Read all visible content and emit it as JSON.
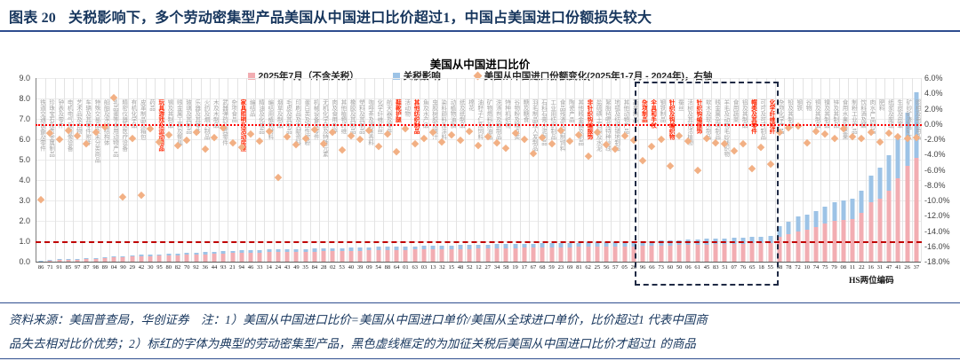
{
  "figure": {
    "header": "图表 20",
    "header_title": "关税影响下，多个劳动密集型产品美国从中国进口比价超过1，中国占美国进口份额损失较大"
  },
  "note": {
    "line1": "资料来源：美国普查局，华创证券　注：1）美国从中国进口比价=美国从中国进口单价/美国从全球进口单价，比价超过1 代表中国商",
    "line2": "品失去相对比价优势；2）标红的字体为典型的劳动密集型产品，黑色虚线框定的为加征关税后美国从中国进口比价才超过1 的商品"
  },
  "chart_data": {
    "type": "bar",
    "stacked": true,
    "title": "美国从中国进口比价",
    "xlabel": "HS两位编码",
    "legend": [
      {
        "label": "2025年7月（不含关税）",
        "marker": "square",
        "color": "#f2adb2"
      },
      {
        "label": "关税影响",
        "marker": "square",
        "color": "#9dc3e6"
      },
      {
        "label": "美国从中国进口份额变化(2025年1-7月 - 2024年)，右轴",
        "marker": "diamond",
        "color": "#f2b084"
      }
    ],
    "left_axis": {
      "min": 0,
      "max": 9,
      "ticks": [
        "9.0",
        "8.0",
        "7.0",
        "6.0",
        "5.0",
        "4.0",
        "3.0",
        "2.0",
        "1.0",
        "0.0"
      ]
    },
    "right_axis": {
      "min": -18,
      "max": 6,
      "ticks": [
        "6.0%",
        "4.0%",
        "2.0%",
        "0.0%",
        "-2.0%",
        "-4.0%",
        "-6.0%",
        "-8.0%",
        "-10.0%",
        "-12.0%",
        "-14.0%",
        "-16.0%",
        "-18.0%"
      ]
    },
    "reference_lines": [
      {
        "axis": "left",
        "value": 1.0,
        "style": "dashed",
        "color": "#c00000"
      },
      {
        "axis": "right",
        "value": 0.0,
        "style": "dotted",
        "color": "#ff0000"
      }
    ],
    "highlight_box": {
      "from_code": "96",
      "to_code": "55",
      "meaning": "加征关税后美国从中国进口比价才超过1的商品"
    },
    "colors": {
      "base": "#f2adb2",
      "tariff": "#9dc3e6",
      "share": "#f2b084",
      "label_gray": "#a3a3a3",
      "label_red": "#ff2400",
      "grid": "#e3e3e3"
    },
    "series": [
      {
        "name": "2025年7月（不含关税）",
        "key": "base",
        "axis": "left",
        "type": "bar"
      },
      {
        "name": "关税影响",
        "key": "tariff",
        "axis": "left",
        "type": "bar"
      },
      {
        "name": "美国从中国进口份额变化(2025年1-7月 - 2024年)，右轴",
        "key": "share",
        "axis": "right",
        "type": "scatter"
      }
    ],
    "categories": [
      {
        "code": "86",
        "name": "铁道交通设备及零件",
        "red": false,
        "base": 0.05,
        "tariff": 0.01,
        "share": -9.8
      },
      {
        "code": "71",
        "name": "珍珠宝石及贵金属制品",
        "red": false,
        "base": 0.07,
        "tariff": 0.02,
        "share": -1.2
      },
      {
        "code": "91",
        "name": "钟表及零件",
        "red": false,
        "base": 0.09,
        "tariff": 0.02,
        "share": -2.0
      },
      {
        "code": "85",
        "name": "电机电气及音像设备",
        "red": false,
        "base": 0.1,
        "tariff": 0.03,
        "share": -0.8
      },
      {
        "code": "97",
        "name": "艺术品及古物",
        "red": false,
        "base": 0.12,
        "tariff": 0.03,
        "share": -1.5
      },
      {
        "code": "87",
        "name": "车辆及其零件附件",
        "red": false,
        "base": 0.13,
        "tariff": 0.04,
        "share": -2.6
      },
      {
        "code": "98",
        "name": "特殊交易品及未分类商品",
        "red": false,
        "base": 0.15,
        "tariff": 0.04,
        "share": -1.0
      },
      {
        "code": "89",
        "name": "船舶及浮动结构体",
        "red": false,
        "base": 0.17,
        "tariff": 0.05,
        "share": -0.4
      },
      {
        "code": "04",
        "name": "乳品蛋等食用动物产品",
        "red": false,
        "base": 0.2,
        "tariff": 0.05,
        "share": 3.5
      },
      {
        "code": "90",
        "name": "精密仪器及医疗设备",
        "red": false,
        "base": 0.22,
        "tariff": 0.06,
        "share": -9.5
      },
      {
        "code": "29",
        "name": "有机化学品",
        "red": false,
        "base": 0.24,
        "tariff": 0.07,
        "share": -1.8
      },
      {
        "code": "42",
        "name": "皮革制品及箱包",
        "red": false,
        "base": 0.26,
        "tariff": 0.07,
        "share": -9.3
      },
      {
        "code": "30",
        "name": "药品",
        "red": false,
        "base": 0.28,
        "tariff": 0.07,
        "share": -0.6
      },
      {
        "code": "95",
        "name": "玩具游戏及运动用品",
        "red": true,
        "base": 0.29,
        "tariff": 0.08,
        "share": -2.3
      },
      {
        "code": "80",
        "name": "锡及其制品",
        "red": false,
        "base": 0.31,
        "tariff": 0.08,
        "share": -1.4
      },
      {
        "code": "82",
        "name": "贱金属工具及餐具",
        "red": false,
        "base": 0.32,
        "tariff": 0.09,
        "share": -2.8
      },
      {
        "code": "70",
        "name": "玻璃及其制品",
        "red": false,
        "base": 0.34,
        "tariff": 0.09,
        "share": -2.1
      },
      {
        "code": "92",
        "name": "乐器及其零件",
        "red": false,
        "base": 0.35,
        "tariff": 0.1,
        "share": -1.1
      },
      {
        "code": "36",
        "name": "火药及烟火制品",
        "red": false,
        "base": 0.37,
        "tariff": 0.1,
        "share": -3.2
      },
      {
        "code": "44",
        "name": "木及木制品",
        "red": false,
        "base": 0.38,
        "tariff": 0.11,
        "share": -1.7
      },
      {
        "code": "93",
        "name": "武器弹药及其零件",
        "red": false,
        "base": 0.4,
        "tariff": 0.11,
        "share": -0.5
      },
      {
        "code": "21",
        "name": "杂项食品",
        "red": false,
        "base": 0.42,
        "tariff": 0.11,
        "share": -2.4
      },
      {
        "code": "94",
        "name": "家具照明及活动房屋",
        "red": true,
        "base": 0.43,
        "tariff": 0.12,
        "share": -3.0
      },
      {
        "code": "46",
        "name": "编结品",
        "red": false,
        "base": 0.44,
        "tariff": 0.12,
        "share": -1.3
      },
      {
        "code": "33",
        "name": "精油及化妆品",
        "red": false,
        "base": 0.45,
        "tariff": 0.13,
        "share": -2.2
      },
      {
        "code": "14",
        "name": "编结用植物材料",
        "red": false,
        "base": 0.46,
        "tariff": 0.13,
        "share": -0.9
      },
      {
        "code": "24",
        "name": "烟草及制品",
        "red": false,
        "base": 0.47,
        "tariff": 0.13,
        "share": -6.9
      },
      {
        "code": "43",
        "name": "毛皮及其制品",
        "red": false,
        "base": 0.48,
        "tariff": 0.13,
        "share": -1.6
      },
      {
        "code": "49",
        "name": "印刷品及文献资料",
        "red": false,
        "base": 0.48,
        "tariff": 0.14,
        "share": -2.7
      },
      {
        "code": "35",
        "name": "蛋白类及改性淀粉",
        "red": false,
        "base": 0.49,
        "tariff": 0.14,
        "share": -1.9
      },
      {
        "code": "84",
        "name": "机械设备及零件",
        "red": false,
        "base": 0.5,
        "tariff": 0.14,
        "share": -0.7
      },
      {
        "code": "28",
        "name": "无机化学品及特殊元素",
        "red": false,
        "base": 0.51,
        "tariff": 0.14,
        "share": -2.5
      },
      {
        "code": "02",
        "name": "肉及食用杂碎",
        "red": false,
        "base": 0.51,
        "tariff": 0.15,
        "share": -1.1
      },
      {
        "code": "53",
        "name": "其他植物纤维",
        "red": false,
        "base": 0.52,
        "tariff": 0.15,
        "share": -3.4
      },
      {
        "code": "40",
        "name": "橡胶及其制品",
        "red": false,
        "base": 0.53,
        "tariff": 0.15,
        "share": -1.5
      },
      {
        "code": "39",
        "name": "塑料及其制品",
        "red": false,
        "base": 0.54,
        "tariff": 0.16,
        "share": -2.0
      },
      {
        "code": "09",
        "name": "咖啡茶及调味香料",
        "red": false,
        "base": 0.55,
        "tariff": 0.16,
        "share": -0.8
      },
      {
        "code": "54",
        "name": "化学纤维长丝",
        "red": false,
        "base": 0.56,
        "tariff": 0.16,
        "share": -2.9
      },
      {
        "code": "88",
        "name": "航天器及零件",
        "red": false,
        "base": 0.57,
        "tariff": 0.16,
        "share": -1.3
      },
      {
        "code": "64",
        "name": "鞋靴护腿",
        "red": true,
        "base": 0.57,
        "tariff": 0.17,
        "share": -3.6
      },
      {
        "code": "01",
        "name": "活动物",
        "red": false,
        "base": 0.58,
        "tariff": 0.17,
        "share": -0.6
      },
      {
        "code": "63",
        "name": "其他纺织制品",
        "red": true,
        "base": 0.59,
        "tariff": 0.17,
        "share": -2.6
      },
      {
        "code": "03",
        "name": "鱼及水产品",
        "red": false,
        "base": 0.6,
        "tariff": 0.17,
        "share": -1.8
      },
      {
        "code": "13",
        "name": "虫胶树胶及液汁",
        "red": false,
        "base": 0.6,
        "tariff": 0.18,
        "share": -1.0
      },
      {
        "code": "32",
        "name": "染料颜料及涂料",
        "red": false,
        "base": 0.61,
        "tariff": 0.18,
        "share": -2.3
      },
      {
        "code": "15",
        "name": "动植物油脂",
        "red": false,
        "base": 0.62,
        "tariff": 0.18,
        "share": -1.4
      },
      {
        "code": "48",
        "name": "纸及纸制品",
        "red": false,
        "base": 0.63,
        "tariff": 0.18,
        "share": -2.1
      },
      {
        "code": "52",
        "name": "棉花",
        "red": false,
        "base": 0.63,
        "tariff": 0.19,
        "share": -0.9
      },
      {
        "code": "12",
        "name": "油籽子仁及饲料",
        "red": false,
        "base": 0.64,
        "tariff": 0.19,
        "share": -2.8
      },
      {
        "code": "27",
        "name": "矿物燃料及油品",
        "red": false,
        "base": 0.65,
        "tariff": 0.19,
        "share": -1.6
      },
      {
        "code": "34",
        "name": "洗涤剂及蜡制品",
        "red": false,
        "base": 0.66,
        "tariff": 0.19,
        "share": -2.4
      },
      {
        "code": "58",
        "name": "特种机织物",
        "red": false,
        "base": 0.66,
        "tariff": 0.2,
        "share": -3.1
      },
      {
        "code": "19",
        "name": "谷物粉及糕点类",
        "red": false,
        "base": 0.67,
        "tariff": 0.2,
        "share": -1.2
      },
      {
        "code": "17",
        "name": "糖及糖食",
        "red": false,
        "base": 0.68,
        "tariff": 0.2,
        "share": -2.0
      },
      {
        "code": "67",
        "name": "羽毛制品及人发制品",
        "red": false,
        "base": 0.69,
        "tariff": 0.2,
        "share": -3.8
      },
      {
        "code": "68",
        "name": "石料石膏水泥制品",
        "red": false,
        "base": 0.69,
        "tariff": 0.21,
        "share": -1.7
      },
      {
        "code": "59",
        "name": "工业用纺织制品",
        "red": false,
        "base": 0.7,
        "tariff": 0.2,
        "share": -2.5
      },
      {
        "code": "23",
        "name": "食品残渣及配制饲料",
        "red": false,
        "base": 0.7,
        "tariff": 0.21,
        "share": -0.8
      },
      {
        "code": "69",
        "name": "陶瓷产品",
        "red": false,
        "base": 0.71,
        "tariff": 0.21,
        "share": -2.2
      },
      {
        "code": "81",
        "name": "其他贱金属及制品",
        "red": false,
        "base": 0.72,
        "tariff": 0.21,
        "share": -1.4
      },
      {
        "code": "62",
        "name": "非针织钩编服饰",
        "red": true,
        "base": 0.72,
        "tariff": 0.22,
        "share": -4.2
      },
      {
        "code": "25",
        "name": "盐硫磺土石料及水泥",
        "red": false,
        "base": 0.73,
        "tariff": 0.21,
        "share": -1.0
      },
      {
        "code": "56",
        "name": "絮胎毡呢及特种纱线",
        "red": false,
        "base": 0.73,
        "tariff": 0.22,
        "share": -2.7
      },
      {
        "code": "57",
        "name": "地毯及纺织铺地制品",
        "red": false,
        "base": 0.74,
        "tariff": 0.22,
        "share": -3.3
      },
      {
        "code": "05",
        "name": "其他动物产品",
        "red": false,
        "base": 0.75,
        "tariff": 0.22,
        "share": -1.5
      },
      {
        "code": "20",
        "name": "蔬果制品",
        "red": false,
        "base": 0.75,
        "tariff": 0.23,
        "share": -2.1
      },
      {
        "code": "96",
        "name": "杂项制品",
        "red": true,
        "base": 0.77,
        "tariff": 0.23,
        "share": -4.8
      },
      {
        "code": "66",
        "name": "伞具和手杖",
        "red": true,
        "base": 0.78,
        "tariff": 0.24,
        "share": -2.9
      },
      {
        "code": "73",
        "name": "钢铁制品",
        "red": false,
        "base": 0.79,
        "tariff": 0.24,
        "share": -2.0
      },
      {
        "code": "60",
        "name": "针织及钩编织物",
        "red": true,
        "base": 0.8,
        "tariff": 0.25,
        "share": -5.5
      },
      {
        "code": "50",
        "name": "蚕丝",
        "red": false,
        "base": 0.81,
        "tariff": 0.25,
        "share": -1.5
      },
      {
        "code": "06",
        "name": "活树及其他活植物",
        "red": false,
        "base": 0.82,
        "tariff": 0.26,
        "share": -2.2
      },
      {
        "code": "61",
        "name": "针织钩编服饰",
        "red": true,
        "base": 0.83,
        "tariff": 0.26,
        "share": -6.0
      },
      {
        "code": "45",
        "name": "软木及软木制品",
        "red": false,
        "base": 0.84,
        "tariff": 0.27,
        "share": -1.8
      },
      {
        "code": "83",
        "name": "贱金属杂项制品",
        "red": false,
        "base": 0.85,
        "tariff": 0.27,
        "share": -2.4
      },
      {
        "code": "51",
        "name": "羊毛及动物毛纱线织物",
        "red": false,
        "base": 0.86,
        "tariff": 0.28,
        "share": -2.5
      },
      {
        "code": "07",
        "name": "食用蔬菜",
        "red": false,
        "base": 0.87,
        "tariff": 0.29,
        "share": -3.5
      },
      {
        "code": "76",
        "name": "铝及其制品",
        "red": false,
        "base": 0.89,
        "tariff": 0.29,
        "share": -2.6
      },
      {
        "code": "65",
        "name": "帽类及其零件",
        "red": true,
        "base": 0.9,
        "tariff": 0.3,
        "share": -5.8
      },
      {
        "code": "18",
        "name": "可可及可可制品",
        "red": false,
        "base": 0.91,
        "tariff": 0.31,
        "share": -3.0
      },
      {
        "code": "55",
        "name": "化学纤维短纤",
        "red": true,
        "base": 0.93,
        "tariff": 0.32,
        "share": -5.2
      },
      {
        "code": "38",
        "name": "杂项化学产品",
        "red": false,
        "base": 1.2,
        "tariff": 0.55,
        "share": -1.1
      },
      {
        "code": "78",
        "name": "铅及其制品",
        "red": false,
        "base": 1.35,
        "tariff": 0.6,
        "share": -0.5
      },
      {
        "code": "72",
        "name": "钢铁",
        "red": false,
        "base": 1.5,
        "tariff": 0.7,
        "share": -0.2
      },
      {
        "code": "10",
        "name": "谷物",
        "red": false,
        "base": 1.55,
        "tariff": 0.75,
        "share": -2.4
      },
      {
        "code": "74",
        "name": "铜及其制品",
        "red": false,
        "base": 1.7,
        "tariff": 0.8,
        "share": -0.9
      },
      {
        "code": "75",
        "name": "镍及其制品",
        "red": false,
        "base": 1.85,
        "tariff": 0.85,
        "share": -1.3
      },
      {
        "code": "79",
        "name": "锌及其制品",
        "red": false,
        "base": 2.0,
        "tariff": 0.9,
        "share": -1.9
      },
      {
        "code": "08",
        "name": "食用水果及坚果",
        "red": false,
        "base": 2.05,
        "tariff": 0.95,
        "share": -0.6
      },
      {
        "code": "11",
        "name": "制粉工业产品",
        "red": false,
        "base": 2.1,
        "tariff": 1.0,
        "share": -1.6
      },
      {
        "code": "22",
        "name": "饮料酒及醋",
        "red": false,
        "base": 2.4,
        "tariff": 1.1,
        "share": -1.9
      },
      {
        "code": "16",
        "name": "肉水产品制品",
        "red": false,
        "base": 2.9,
        "tariff": 1.3,
        "share": -1.0
      },
      {
        "code": "31",
        "name": "肥料",
        "red": false,
        "base": 3.1,
        "tariff": 1.5,
        "share": -2.3
      },
      {
        "code": "47",
        "name": "纸浆及废纸",
        "red": false,
        "base": 3.5,
        "tariff": 1.7,
        "share": -1.2
      },
      {
        "code": "41",
        "name": "生皮及皮革",
        "red": false,
        "base": 4.1,
        "tariff": 2.1,
        "share": -1.6
      },
      {
        "code": "26",
        "name": "矿砂矿渣及矿灰",
        "red": false,
        "base": 4.7,
        "tariff": 2.6,
        "share": -1.8
      },
      {
        "code": "37",
        "name": "照相及电影用品",
        "red": false,
        "base": 5.1,
        "tariff": 3.2,
        "share": -1.7
      }
    ]
  }
}
